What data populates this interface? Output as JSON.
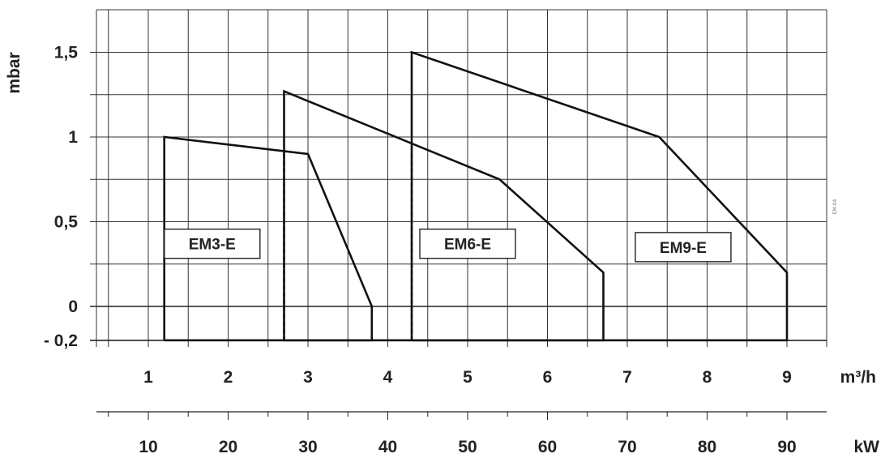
{
  "chart_data": {
    "type": "line",
    "ylabel": "mbar",
    "x_units": [
      "m³/h",
      "kW"
    ],
    "x1": {
      "label": "m³/h",
      "ticks": [
        1,
        2,
        3,
        4,
        5,
        6,
        7,
        8,
        9
      ],
      "tick_labels": [
        "1",
        "2",
        "3",
        "4",
        "5",
        "6",
        "7",
        "8",
        "9"
      ]
    },
    "x2": {
      "label": "kW",
      "ticks": [
        10,
        20,
        30,
        40,
        50,
        60,
        70,
        80,
        90
      ],
      "tick_labels": [
        "10",
        "20",
        "30",
        "40",
        "50",
        "60",
        "70",
        "80",
        "90"
      ]
    },
    "y": {
      "ticks": [
        -0.2,
        0,
        0.5,
        1,
        1.5
      ],
      "tick_labels": [
        "- 0,2",
        "0",
        "0,5",
        "1",
        "1,5"
      ],
      "ylim": [
        -0.2,
        1.7
      ]
    },
    "xlim": [
      0.45,
      9.5
    ],
    "grid": true,
    "series": [
      {
        "name": "EM3-E",
        "points": [
          [
            1.2,
            -0.2
          ],
          [
            1.2,
            1.0
          ],
          [
            3.0,
            0.9
          ],
          [
            3.8,
            0.0
          ],
          [
            3.8,
            -0.2
          ],
          [
            1.2,
            -0.2
          ]
        ],
        "label_anchor": [
          1.8,
          0.37
        ]
      },
      {
        "name": "EM6-E",
        "points": [
          [
            2.7,
            -0.2
          ],
          [
            2.7,
            1.27
          ],
          [
            5.4,
            0.75
          ],
          [
            6.7,
            0.2
          ],
          [
            6.7,
            -0.2
          ],
          [
            2.7,
            -0.2
          ]
        ],
        "dashed_drop": [
          [
            2.7,
            -0.2
          ],
          [
            2.7,
            0.92
          ]
        ],
        "label_anchor": [
          5.0,
          0.37
        ]
      },
      {
        "name": "EM9-E",
        "points": [
          [
            4.3,
            -0.2
          ],
          [
            4.3,
            1.5
          ],
          [
            7.4,
            1.0
          ],
          [
            9.0,
            0.2
          ],
          [
            9.0,
            -0.2
          ],
          [
            4.3,
            -0.2
          ]
        ],
        "dashed_drop": [
          [
            4.3,
            -0.2
          ],
          [
            4.3,
            0.97
          ]
        ],
        "label_anchor": [
          7.7,
          0.35
        ]
      }
    ],
    "annotations": [
      "EM3-E",
      "EM6-E",
      "EM9-E"
    ]
  }
}
